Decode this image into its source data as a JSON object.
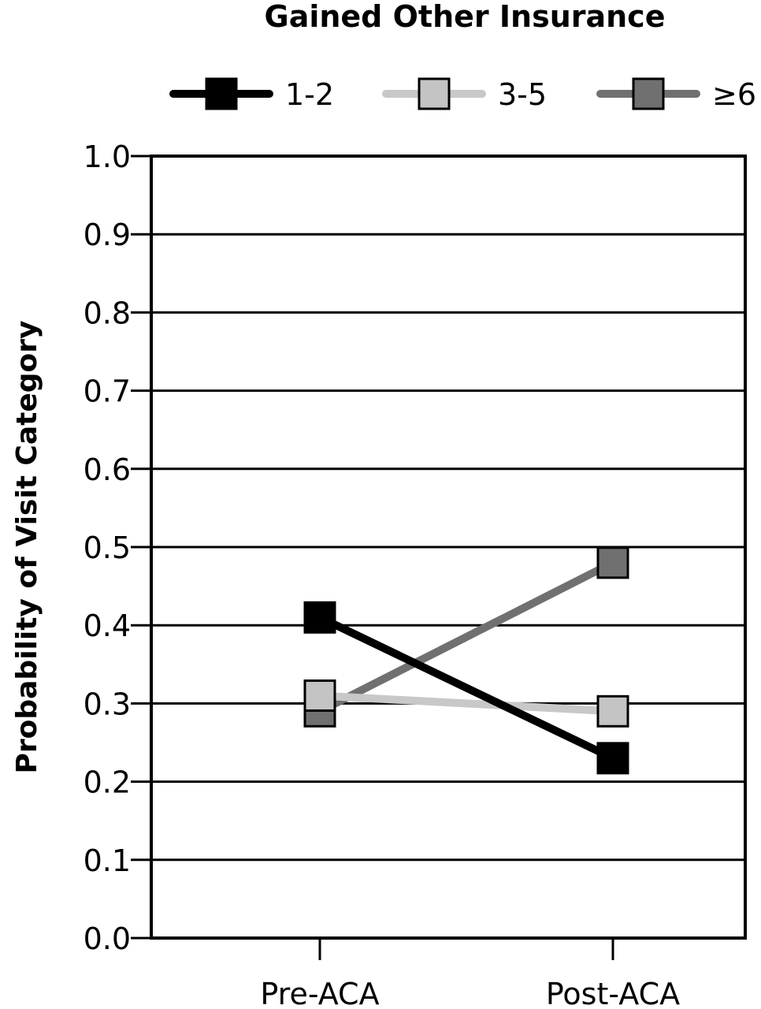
{
  "chart_data": {
    "type": "line",
    "title": "Gained Other Insurance",
    "xlabel": "",
    "ylabel": "Probability of Visit Category",
    "categories": [
      "Pre-ACA",
      "Post-ACA"
    ],
    "ylim": [
      0,
      1
    ],
    "yticks": [
      "0.0",
      "0.1",
      "0.2",
      "0.3",
      "0.4",
      "0.5",
      "0.6",
      "0.7",
      "0.8",
      "0.9",
      "1.0"
    ],
    "grid": true,
    "legend_position": "top",
    "series": [
      {
        "name": "1-2",
        "values": [
          0.41,
          0.23
        ],
        "color": "#000000",
        "marker_fill": "#000000"
      },
      {
        "name": "3-5",
        "values": [
          0.31,
          0.29
        ],
        "color": "#c8c8c8",
        "marker_fill": "#c4c4c4"
      },
      {
        "name": "≥6",
        "values": [
          0.29,
          0.48
        ],
        "color": "#707070",
        "marker_fill": "#707070"
      }
    ]
  }
}
